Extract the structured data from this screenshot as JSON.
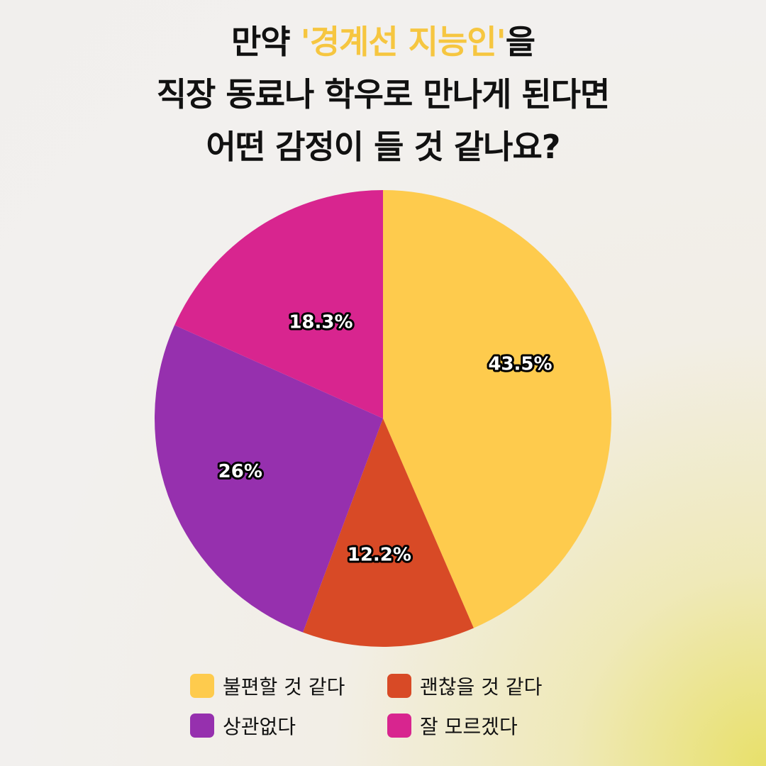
{
  "title": {
    "line1_prefix": "만약 ",
    "line1_highlight": "'경계선 지능인'",
    "line1_suffix": "을",
    "line2": "직장 동료나 학우로 만나게 된다면",
    "line3": "어떤 감정이 들 것 같나요?"
  },
  "chart_data": {
    "type": "pie",
    "start_angle_deg": 0,
    "direction": "clockwise",
    "slices": [
      {
        "label": "불편할 것 같다",
        "value": 43.5,
        "display": "43.5%",
        "color": "#fecb4d"
      },
      {
        "label": "괜찮을 것 같다",
        "value": 12.2,
        "display": "12.2%",
        "color": "#d84a26"
      },
      {
        "label": "상관없다",
        "value": 26,
        "display": "26%",
        "color": "#9630ae"
      },
      {
        "label": "잘 모르겠다",
        "value": 18.3,
        "display": "18.3%",
        "color": "#d8258f"
      }
    ],
    "legend_position": "bottom"
  }
}
